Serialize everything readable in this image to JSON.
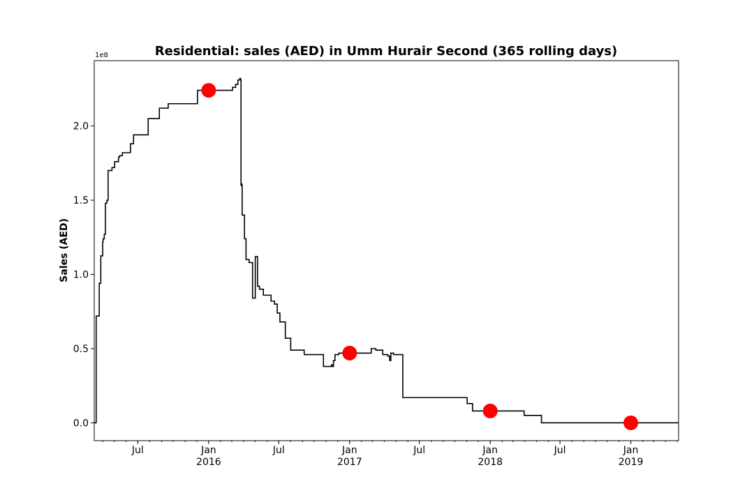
{
  "chart_data": {
    "type": "line",
    "title": "Residential: sales (AED) in Umm Hurair Second (365 rolling days)",
    "ylabel": "Sales (AED)",
    "xlabel": "",
    "y_offset_text": "1e8",
    "ylim": [
      -0.12,
      2.44
    ],
    "xlim": [
      "2015-03-10",
      "2019-05-05"
    ],
    "yticks": [
      {
        "value": 0.0,
        "label": "0.0"
      },
      {
        "value": 0.5,
        "label": "0.5"
      },
      {
        "value": 1.0,
        "label": "1.0"
      },
      {
        "value": 1.5,
        "label": "1.5"
      },
      {
        "value": 2.0,
        "label": "2.0"
      }
    ],
    "xticks": [
      {
        "date": "2015-07-01",
        "label": "Jul",
        "sublabel": ""
      },
      {
        "date": "2016-01-01",
        "label": "Jan",
        "sublabel": "2016"
      },
      {
        "date": "2016-07-01",
        "label": "Jul",
        "sublabel": ""
      },
      {
        "date": "2017-01-01",
        "label": "Jan",
        "sublabel": "2017"
      },
      {
        "date": "2017-07-01",
        "label": "Jul",
        "sublabel": ""
      },
      {
        "date": "2018-01-01",
        "label": "Jan",
        "sublabel": "2018"
      },
      {
        "date": "2018-07-01",
        "label": "Jul",
        "sublabel": ""
      },
      {
        "date": "2019-01-01",
        "label": "Jan",
        "sublabel": "2019"
      }
    ],
    "grid": false,
    "series": [
      {
        "style": "step",
        "color": "#000000",
        "x": [
          "2015-03-10",
          "2015-03-12",
          "2015-03-15",
          "2015-03-18",
          "2015-03-23",
          "2015-03-27",
          "2015-04-01",
          "2015-04-02",
          "2015-04-05",
          "2015-04-08",
          "2015-04-12",
          "2015-04-15",
          "2015-04-18",
          "2015-04-25",
          "2015-05-02",
          "2015-05-12",
          "2015-05-15",
          "2015-05-22",
          "2015-06-05",
          "2015-06-12",
          "2015-06-20",
          "2015-07-08",
          "2015-07-20",
          "2015-07-28",
          "2015-08-26",
          "2015-08-30",
          "2015-09-03",
          "2015-09-18",
          "2015-10-17",
          "2015-10-21",
          "2015-12-03",
          "2016-01-28",
          "2016-02-03",
          "2016-02-09",
          "2016-02-28",
          "2016-03-03",
          "2016-03-07",
          "2016-03-09",
          "2016-03-11",
          "2016-03-13",
          "2016-03-15",
          "2016-03-17",
          "2016-03-19",
          "2016-03-22",
          "2016-03-24",
          "2016-03-25",
          "2016-03-26",
          "2016-03-27",
          "2016-03-28",
          "2016-04-03",
          "2016-04-07",
          "2016-04-15",
          "2016-04-24",
          "2016-05-01",
          "2016-05-07",
          "2016-05-12",
          "2016-05-22",
          "2016-06-11",
          "2016-06-20",
          "2016-06-27",
          "2016-07-04",
          "2016-07-18",
          "2016-08-01",
          "2016-08-30",
          "2016-09-05",
          "2016-09-10",
          "2016-09-16",
          "2016-09-21",
          "2016-10-25",
          "2016-11-15",
          "2016-11-17",
          "2016-11-20",
          "2016-11-24",
          "2016-12-04",
          "2016-12-10",
          "2016-12-31",
          "2017-02-08",
          "2017-02-12",
          "2017-02-26",
          "2017-03-05",
          "2017-03-10",
          "2017-03-15",
          "2017-03-28",
          "2017-04-10",
          "2017-04-15",
          "2017-04-18",
          "2017-04-22",
          "2017-04-25",
          "2017-05-02",
          "2017-05-13",
          "2017-05-19",
          "2017-05-30",
          "2017-06-02",
          "2017-06-12",
          "2017-06-22",
          "2017-07-03",
          "2017-08-10",
          "2017-10-20",
          "2017-11-02",
          "2017-11-16",
          "2017-11-26",
          "2017-12-02",
          "2018-03-30",
          "2018-05-14",
          "2018-05-15",
          "2019-05-05"
        ],
        "y": [
          0.0,
          0.0,
          0.72,
          0.72,
          0.94,
          1.125,
          1.22,
          1.24,
          1.27,
          1.48,
          1.5,
          1.7,
          1.7,
          1.72,
          1.76,
          1.79,
          1.8,
          1.82,
          1.82,
          1.88,
          1.94,
          1.94,
          1.94,
          2.05,
          2.12,
          2.12,
          2.12,
          2.15,
          2.15,
          2.15,
          2.24,
          2.24,
          2.24,
          2.24,
          2.24,
          2.26,
          2.26,
          2.26,
          2.28,
          2.28,
          2.28,
          2.31,
          2.31,
          2.32,
          2.31,
          1.6,
          1.61,
          1.6,
          1.4,
          1.24,
          1.1,
          1.08,
          0.84,
          1.12,
          0.92,
          0.9,
          0.86,
          0.82,
          0.8,
          0.74,
          0.68,
          0.57,
          0.49,
          0.49,
          0.46,
          0.46,
          0.46,
          0.46,
          0.38,
          0.39,
          0.38,
          0.42,
          0.46,
          0.47,
          0.47,
          0.47,
          0.47,
          0.47,
          0.5,
          0.5,
          0.49,
          0.49,
          0.46,
          0.45,
          0.42,
          0.47,
          0.47,
          0.46,
          0.46,
          0.46,
          0.17,
          0.17,
          0.17,
          0.17,
          0.17,
          0.17,
          0.17,
          0.17,
          0.13,
          0.08,
          0.08,
          0.08,
          0.05,
          0.0,
          0.0,
          0.0
        ]
      }
    ],
    "markers": {
      "color": "#ff0000",
      "points": [
        {
          "x": "2016-01-01",
          "y": 2.24
        },
        {
          "x": "2017-01-01",
          "y": 0.47
        },
        {
          "x": "2018-01-01",
          "y": 0.08
        },
        {
          "x": "2019-01-01",
          "y": 0.0
        }
      ]
    }
  }
}
